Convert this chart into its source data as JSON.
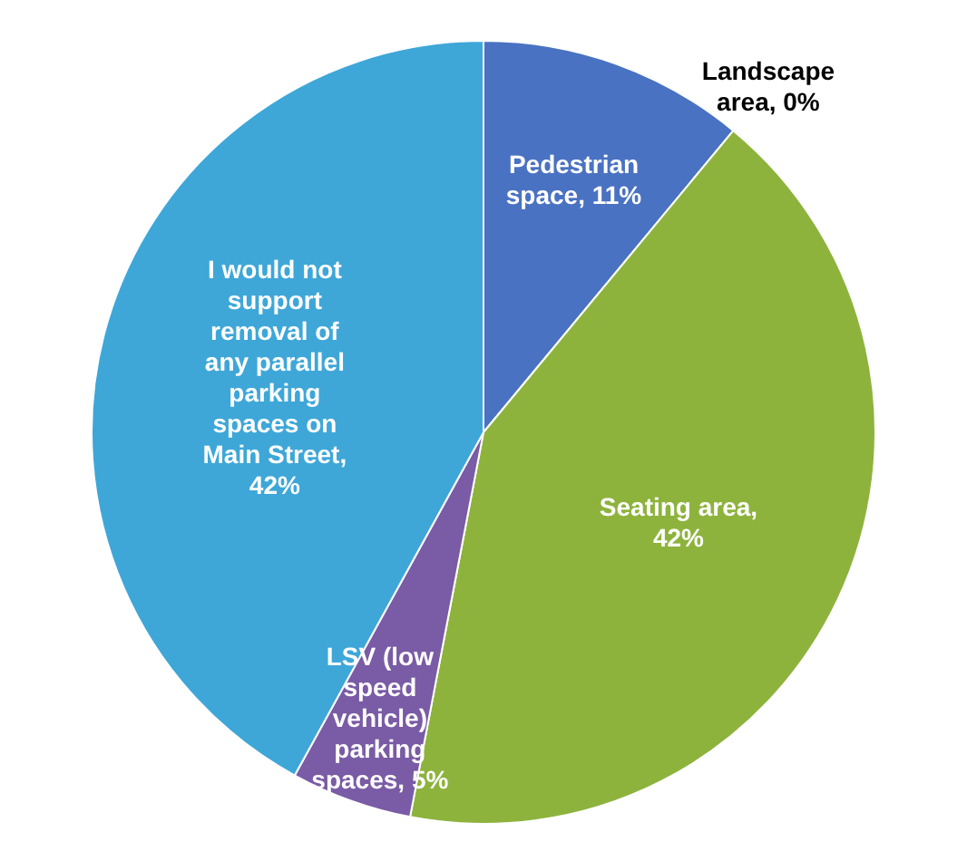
{
  "chart_data": {
    "type": "pie",
    "categories": [
      "Pedestrian space, 11%",
      "Landscape area, 0%",
      "Seating area, 42%",
      "LSV (low speed vehicle) parking spaces, 5%",
      "I would not support removal of any parallel parking spaces on Main Street, 42%"
    ],
    "values": [
      11,
      0,
      42,
      5,
      42
    ],
    "colors": [
      "#4a72c2",
      "#9a3b3b",
      "#8db33d",
      "#7a5ba5",
      "#3ea7d8"
    ],
    "legend": false
  }
}
